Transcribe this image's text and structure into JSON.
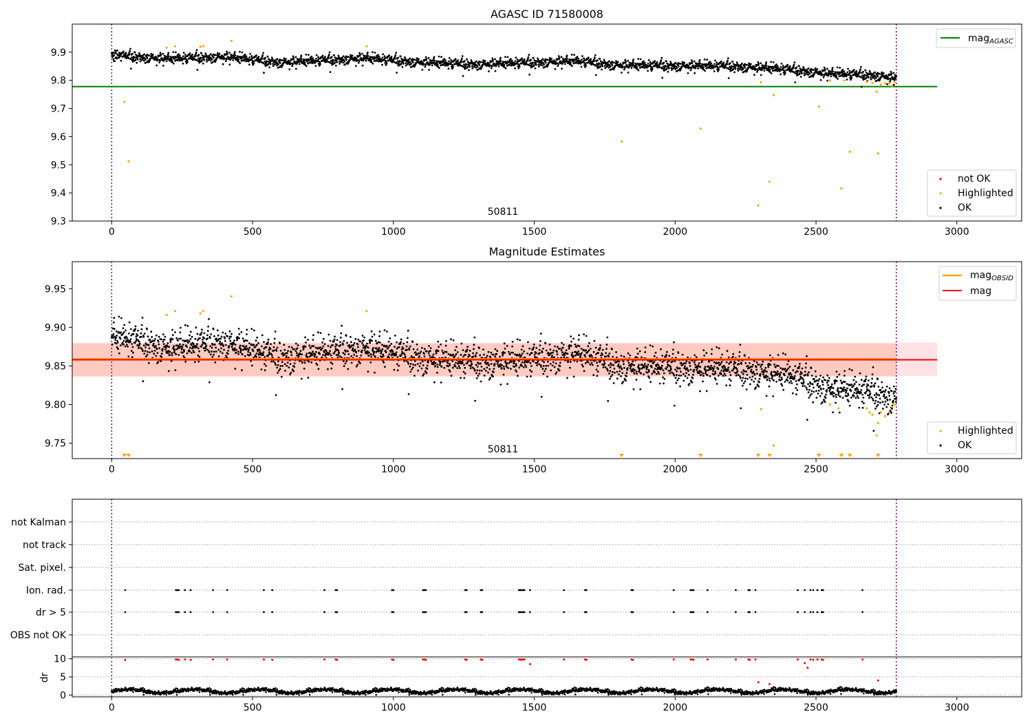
{
  "chart_data": [
    {
      "type": "scatter",
      "title": "AGASC ID 71580008",
      "annotation": "50811",
      "xlim": [
        -140,
        3230
      ],
      "ylim": [
        9.3,
        10.0
      ],
      "xticks": [
        0,
        500,
        1000,
        1500,
        2000,
        2500,
        3000
      ],
      "yticks": [
        9.3,
        9.4,
        9.5,
        9.6,
        9.7,
        9.8,
        9.9
      ],
      "grid": false,
      "vlines": [
        0,
        2785
      ],
      "hlines": [
        {
          "name": "mag_AGASC",
          "y": 9.778,
          "x": [
            -140,
            2930
          ],
          "color": "#008000"
        }
      ],
      "line_legend": {
        "placement": "top-right",
        "entries": [
          {
            "text": "mag",
            "sub": "AGASC",
            "color": "#008000"
          }
        ]
      },
      "point_legend": {
        "placement": "bottom-right",
        "entries": [
          {
            "text": "not OK",
            "color": "#ff0000"
          },
          {
            "text": "Highlighted",
            "color": "#ffa500"
          },
          {
            "text": "OK",
            "color": "#000000"
          }
        ]
      },
      "series": [
        {
          "name": "OK",
          "color": "#000000",
          "trend": {
            "x": [
              0,
              200,
              400,
              600,
              900,
              1100,
              1300,
              1500,
              1650,
              1800,
              2000,
              2200,
              2400,
              2550,
              2700,
              2785
            ],
            "y": [
              9.89,
              9.878,
              9.885,
              9.865,
              9.88,
              9.865,
              9.858,
              9.865,
              9.87,
              9.855,
              9.853,
              9.852,
              9.84,
              9.825,
              9.82,
              9.81
            ]
          },
          "spread": 0.012,
          "x_range": [
            0,
            2785
          ],
          "count": 2600
        },
        {
          "name": "Highlighted",
          "color": "#ffa500",
          "points": [
            [
              45,
              9.724
            ],
            [
              60,
              9.512
            ],
            [
              195,
              9.916
            ],
            [
              225,
              9.921
            ],
            [
              315,
              9.92
            ],
            [
              325,
              9.922
            ],
            [
              425,
              9.94
            ],
            [
              905,
              9.921
            ],
            [
              1810,
              9.583
            ],
            [
              2090,
              9.629
            ],
            [
              2295,
              9.356
            ],
            [
              2305,
              9.794
            ],
            [
              2335,
              9.44
            ],
            [
              2350,
              9.748
            ],
            [
              2510,
              9.707
            ],
            [
              2590,
              9.416
            ],
            [
              2620,
              9.546
            ],
            [
              2720,
              9.54
            ],
            [
              2715,
              9.76
            ],
            [
              2550,
              9.8
            ],
            [
              2600,
              9.8
            ],
            [
              2680,
              9.795
            ],
            [
              2700,
              9.79
            ],
            [
              2730,
              9.785
            ],
            [
              2745,
              9.79
            ],
            [
              2760,
              9.79
            ],
            [
              2770,
              9.78
            ],
            [
              2780,
              9.795
            ]
          ]
        },
        {
          "name": "not OK",
          "color": "#ff0000",
          "points": []
        }
      ]
    },
    {
      "type": "scatter",
      "title": "Magnitude Estimates",
      "annotation": "50811",
      "xlim": [
        -140,
        3230
      ],
      "ylim": [
        9.73,
        9.985
      ],
      "xticks": [
        0,
        500,
        1000,
        1500,
        2000,
        2500,
        3000
      ],
      "yticks": [
        9.75,
        9.8,
        9.85,
        9.9,
        9.95
      ],
      "grid": false,
      "vlines": [
        0,
        2785
      ],
      "bands": [
        {
          "name": "mag band",
          "y": [
            9.837,
            9.88
          ],
          "x": [
            -140,
            2930
          ],
          "color": "#ffb6c1"
        },
        {
          "name": "mag_OBSID band",
          "y": [
            9.836,
            9.879
          ],
          "x": [
            -140,
            2785
          ],
          "color": "#ffa07a"
        }
      ],
      "hlines": [
        {
          "name": "mag_OBSID",
          "y": 9.859,
          "x": [
            -140,
            2785
          ],
          "color": "#ffa500"
        },
        {
          "name": "mag",
          "y": 9.858,
          "x": [
            -140,
            2930
          ],
          "color": "#ff0000"
        }
      ],
      "line_legend": {
        "placement": "top-right",
        "entries": [
          {
            "text": "mag",
            "sub": "OBSID",
            "color": "#ffa500"
          },
          {
            "text": "mag",
            "sub": "",
            "color": "#ff0000"
          }
        ]
      },
      "point_legend": {
        "placement": "bottom-right",
        "entries": [
          {
            "text": "Highlighted",
            "color": "#ffa500"
          },
          {
            "text": "OK",
            "color": "#000000"
          }
        ]
      },
      "clipped_markers": [
        45,
        60,
        1810,
        2090,
        2295,
        2335,
        2510,
        2590,
        2620,
        2720
      ],
      "series": [
        {
          "name": "OK",
          "color": "#000000",
          "trend": {
            "x": [
              0,
              200,
              400,
              600,
              900,
              1100,
              1300,
              1500,
              1650,
              1800,
              2000,
              2200,
              2400,
              2550,
              2700,
              2785
            ],
            "y": [
              9.89,
              9.875,
              9.882,
              9.862,
              9.875,
              9.862,
              9.856,
              9.86,
              9.868,
              9.852,
              9.85,
              9.848,
              9.84,
              9.822,
              9.818,
              9.808
            ]
          },
          "spread": 0.014,
          "x_range": [
            0,
            2785
          ],
          "count": 2600
        },
        {
          "name": "Highlighted",
          "color": "#ffa500",
          "points": [
            [
              195,
              9.916
            ],
            [
              225,
              9.921
            ],
            [
              315,
              9.918
            ],
            [
              325,
              9.921
            ],
            [
              425,
              9.94
            ],
            [
              905,
              9.921
            ],
            [
              2305,
              9.794
            ],
            [
              2350,
              9.747
            ],
            [
              2550,
              9.8
            ],
            [
              2580,
              9.795
            ],
            [
              2680,
              9.795
            ],
            [
              2690,
              9.79
            ],
            [
              2700,
              9.787
            ],
            [
              2715,
              9.76
            ],
            [
              2720,
              9.776
            ],
            [
              2730,
              9.79
            ],
            [
              2745,
              9.785
            ],
            [
              2760,
              9.79
            ],
            [
              2770,
              9.797
            ],
            [
              2780,
              9.8
            ]
          ]
        }
      ]
    },
    {
      "type": "scatter",
      "title": "",
      "xlim": [
        -140,
        3230
      ],
      "xticks": [
        0,
        500,
        1000,
        1500,
        2000,
        2500,
        3000
      ],
      "vlines": [
        0,
        2785
      ],
      "flag_rows": [
        "not Kalman",
        "not track",
        "Sat. pixel.",
        "Ion. rad.",
        "dr > 5",
        "OBS not OK"
      ],
      "flag_points": {
        "Ion. rad.": [
          48,
          228,
          232,
          238,
          260,
          280,
          360,
          410,
          540,
          570,
          755,
          795,
          800,
          995,
          1000,
          1105,
          1110,
          1115,
          1255,
          1260,
          1310,
          1315,
          1445,
          1450,
          1455,
          1460,
          1465,
          1485,
          1605,
          1680,
          1685,
          1845,
          1850,
          1995,
          2055,
          2060,
          2065,
          2115,
          2215,
          2260,
          2265,
          2285,
          2435,
          2460,
          2480,
          2490,
          2505,
          2520,
          2525,
          2665
        ],
        "dr > 5": [
          48,
          228,
          232,
          238,
          260,
          280,
          360,
          410,
          540,
          570,
          755,
          795,
          800,
          995,
          1000,
          1105,
          1110,
          1115,
          1255,
          1260,
          1310,
          1315,
          1445,
          1450,
          1455,
          1460,
          1465,
          1485,
          1605,
          1680,
          1685,
          1845,
          1850,
          1995,
          2055,
          2060,
          2065,
          2115,
          2215,
          2260,
          2265,
          2285,
          2435,
          2460,
          2480,
          2490,
          2505,
          2520,
          2525,
          2665
        ]
      },
      "dr_panel": {
        "ylabel": "dr",
        "ylim": [
          -0.5,
          10.5
        ],
        "yticks": [
          0,
          5,
          10
        ],
        "ok_trend": {
          "x_range": [
            0,
            2785
          ],
          "y_mean": 1.1,
          "spread": 0.6,
          "count": 2600
        },
        "not_ok_points": [
          [
            48,
            9.7
          ],
          [
            228,
            9.8
          ],
          [
            232,
            9.8
          ],
          [
            238,
            9.7
          ],
          [
            260,
            9.8
          ],
          [
            280,
            9.7
          ],
          [
            360,
            9.8
          ],
          [
            410,
            9.8
          ],
          [
            540,
            9.8
          ],
          [
            570,
            9.7
          ],
          [
            755,
            9.8
          ],
          [
            795,
            9.8
          ],
          [
            800,
            9.7
          ],
          [
            995,
            9.8
          ],
          [
            1000,
            9.7
          ],
          [
            1105,
            9.8
          ],
          [
            1110,
            9.8
          ],
          [
            1115,
            9.7
          ],
          [
            1255,
            9.8
          ],
          [
            1260,
            9.7
          ],
          [
            1310,
            9.8
          ],
          [
            1315,
            9.7
          ],
          [
            1445,
            9.8
          ],
          [
            1450,
            9.8
          ],
          [
            1455,
            9.7
          ],
          [
            1460,
            9.8
          ],
          [
            1465,
            9.8
          ],
          [
            1485,
            8.5
          ],
          [
            1605,
            9.8
          ],
          [
            1680,
            9.8
          ],
          [
            1685,
            9.7
          ],
          [
            1845,
            9.8
          ],
          [
            1850,
            9.7
          ],
          [
            1995,
            9.8
          ],
          [
            2055,
            9.8
          ],
          [
            2060,
            9.8
          ],
          [
            2065,
            9.7
          ],
          [
            2115,
            9.8
          ],
          [
            2215,
            9.8
          ],
          [
            2260,
            9.8
          ],
          [
            2265,
            9.7
          ],
          [
            2285,
            9.8
          ],
          [
            2295,
            3.5
          ],
          [
            2335,
            3.0
          ],
          [
            2435,
            9.8
          ],
          [
            2460,
            8.8
          ],
          [
            2470,
            7.5
          ],
          [
            2480,
            9.8
          ],
          [
            2490,
            9.7
          ],
          [
            2505,
            9.8
          ],
          [
            2520,
            9.8
          ],
          [
            2525,
            9.7
          ],
          [
            2665,
            9.8
          ],
          [
            2720,
            4.0
          ]
        ]
      }
    }
  ]
}
